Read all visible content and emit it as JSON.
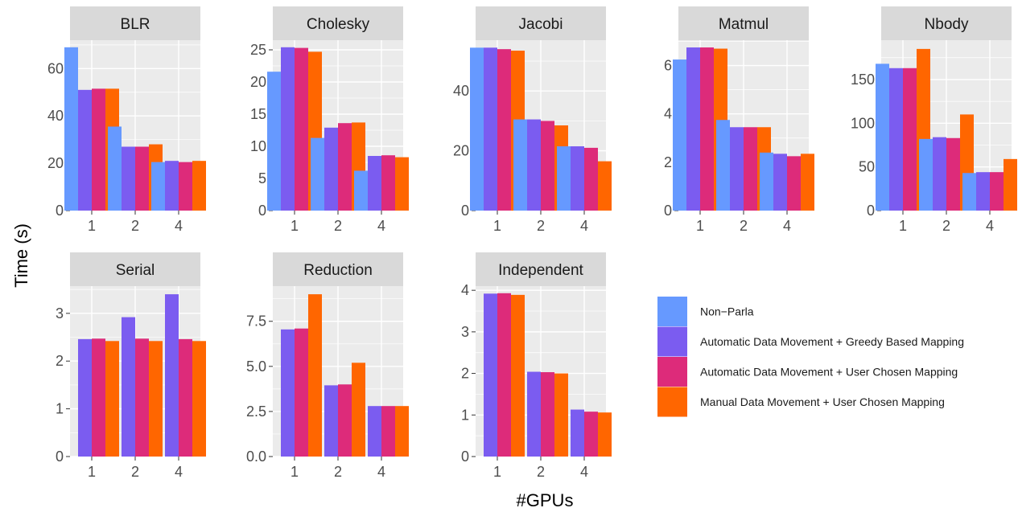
{
  "colors": {
    "panel_bg": "#ebebeb",
    "strip_bg": "#d9d9d9",
    "grid": "#ffffff"
  },
  "chart_data": {
    "type": "bar",
    "xlabel": "#GPUs",
    "ylabel": "Time (s)",
    "categories": [
      "1",
      "2",
      "4"
    ],
    "legend": {
      "placement": "right",
      "items": [
        {
          "name": "Non−Parla",
          "color": "#6699ff"
        },
        {
          "name": "Automatic Data Movement + Greedy Based Mapping",
          "color": "#7b5cf0"
        },
        {
          "name": "Automatic Data Movement + User Chosen Mapping",
          "color": "#dd2b7a"
        },
        {
          "name": "Manual Data Movement + User Chosen Mapping",
          "color": "#ff6600"
        }
      ]
    },
    "panels": [
      {
        "name": "BLR",
        "ylim": [
          0,
          72
        ],
        "yticks": [
          0,
          20,
          40,
          60
        ],
        "ytick_labels": [
          "0",
          "20",
          "40",
          "60"
        ],
        "values": [
          [
            69,
            51,
            51.5,
            51.5
          ],
          [
            35.5,
            27,
            27,
            28
          ],
          [
            20.5,
            21,
            20.5,
            21
          ]
        ]
      },
      {
        "name": "Cholesky",
        "ylim": [
          0,
          26.5
        ],
        "yticks": [
          0,
          5,
          10,
          15,
          20,
          25
        ],
        "ytick_labels": [
          "0",
          "5",
          "10",
          "15",
          "20",
          "25"
        ],
        "values": [
          [
            21.6,
            25.4,
            25.3,
            24.7
          ],
          [
            11.3,
            12.9,
            13.6,
            13.7
          ],
          [
            6.2,
            8.5,
            8.6,
            8.3
          ]
        ]
      },
      {
        "name": "Jacobi",
        "ylim": [
          0,
          57
        ],
        "yticks": [
          0,
          20,
          40
        ],
        "ytick_labels": [
          "0",
          "20",
          "40"
        ],
        "values": [
          [
            54.5,
            54.5,
            54,
            53.5
          ],
          [
            30.5,
            30.5,
            30,
            28.5
          ],
          [
            21.5,
            21.5,
            21,
            16.5
          ]
        ]
      },
      {
        "name": "Matmul",
        "ylim": [
          0,
          7.05
        ],
        "yticks": [
          0,
          2,
          4,
          6
        ],
        "ytick_labels": [
          "0",
          "2",
          "4",
          "6"
        ],
        "values": [
          [
            6.25,
            6.75,
            6.75,
            6.7
          ],
          [
            3.75,
            3.45,
            3.45,
            3.45
          ],
          [
            2.4,
            2.35,
            2.25,
            2.35
          ]
        ]
      },
      {
        "name": "Nbody",
        "ylim": [
          0,
          195
        ],
        "yticks": [
          0,
          50,
          100,
          150
        ],
        "ytick_labels": [
          "0",
          "50",
          "100",
          "150"
        ],
        "values": [
          [
            168,
            163,
            163,
            185
          ],
          [
            82,
            84,
            83,
            110
          ],
          [
            43,
            44,
            44,
            59
          ]
        ]
      },
      {
        "name": "Serial",
        "ylim": [
          0,
          3.57
        ],
        "yticks": [
          0,
          1,
          2,
          3
        ],
        "ytick_labels": [
          "0",
          "1",
          "2",
          "3"
        ],
        "values": [
          [
            0,
            2.46,
            2.47,
            2.42
          ],
          [
            0,
            2.92,
            2.47,
            2.42
          ],
          [
            0,
            3.4,
            2.46,
            2.42
          ]
        ]
      },
      {
        "name": "Reduction",
        "ylim": [
          0,
          9.45
        ],
        "yticks": [
          0,
          2.5,
          5,
          7.5
        ],
        "ytick_labels": [
          "0.0",
          "2.5",
          "5.0",
          "7.5"
        ],
        "values": [
          [
            0,
            7.05,
            7.1,
            9
          ],
          [
            0,
            3.95,
            4.0,
            5.2
          ],
          [
            0,
            2.8,
            2.8,
            2.8
          ]
        ]
      },
      {
        "name": "Independent",
        "ylim": [
          0,
          4.1
        ],
        "yticks": [
          0,
          1,
          2,
          3,
          4
        ],
        "ytick_labels": [
          "0",
          "1",
          "2",
          "3",
          "4"
        ],
        "values": [
          [
            0,
            3.92,
            3.93,
            3.89
          ],
          [
            0,
            2.04,
            2.03,
            2.0
          ],
          [
            0,
            1.13,
            1.08,
            1.06
          ]
        ]
      }
    ]
  }
}
